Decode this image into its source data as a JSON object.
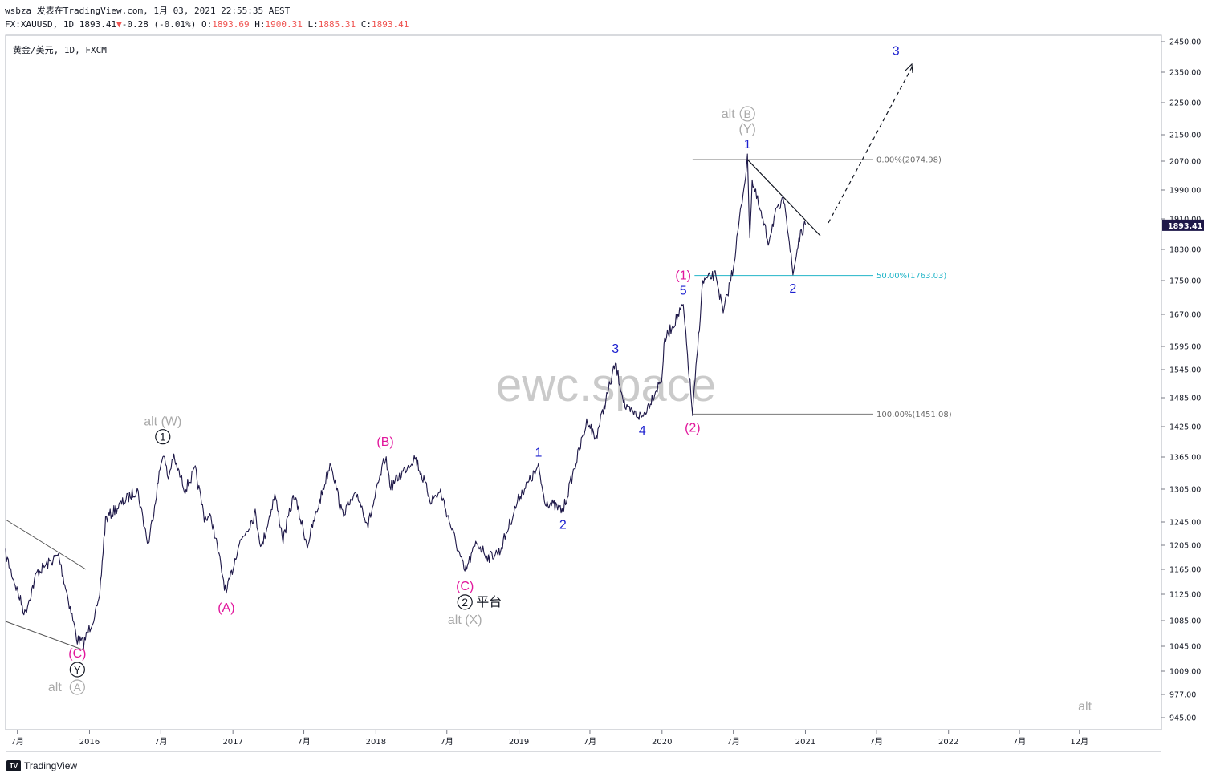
{
  "header": {
    "line1": "wsbza 发表在TradingView.com, 1月 03, 2021 22:55:35 AEST",
    "prefix": "FX:XAUUSD, 1D 1893.41",
    "arrow": "▼",
    "change": "-0.28 (-0.01%)",
    "o_label": "O:",
    "o_value": "1893.69",
    "h_label": "H:",
    "h_value": "1900.31",
    "l_label": "L:",
    "l_value": "1885.31",
    "c_label": "C:",
    "c_value": "1893.41"
  },
  "symbol_label": "黄金/美元, 1D, FXCM",
  "watermark": "ewc.space",
  "branding": "TradingView",
  "branding_icon": "tv-logo-icon",
  "colors": {
    "price": "#1e1848",
    "blue": "#1b1fcf",
    "magenta": "#e1169c",
    "grey": "#a9a9a9",
    "fib": "#4f4f4f",
    "fib_teal": "#22b5c8",
    "down": "#ef5350"
  },
  "chart_data": {
    "type": "line",
    "title": "",
    "xlabel": "",
    "ylabel": "",
    "x_ticks": [
      "7月",
      "2016",
      "7月",
      "2017",
      "7月",
      "2018",
      "7月",
      "2019",
      "7月",
      "2020",
      "7月",
      "2021",
      "7月",
      "2022",
      "7月",
      "12月"
    ],
    "y_ticks": [
      "2450.00",
      "2350.00",
      "2250.00",
      "2150.00",
      "2070.00",
      "1990.00",
      "1910.00",
      "1830.00",
      "1750.00",
      "1670.00",
      "1595.00",
      "1545.00",
      "1485.00",
      "1425.00",
      "1365.00",
      "1305.00",
      "1245.00",
      "1205.00",
      "1165.00",
      "1125.00",
      "1085.00",
      "1045.00",
      "1009.00",
      "977.00",
      "945.00"
    ],
    "ylim": [
      920,
      2480
    ],
    "last_price": "1893.41",
    "series": [
      {
        "values": [
          {
            "x": "2015-06-01",
            "y": 1190
          },
          {
            "x": "2015-07-20",
            "y": 1095
          },
          {
            "x": "2015-08-20",
            "y": 1160
          },
          {
            "x": "2015-10-14",
            "y": 1188
          },
          {
            "x": "2015-12-01",
            "y": 1055
          },
          {
            "x": "2015-12-17",
            "y": 1050
          },
          {
            "x": "2016-01-25",
            "y": 1110
          },
          {
            "x": "2016-02-11",
            "y": 1250
          },
          {
            "x": "2016-03-10",
            "y": 1270
          },
          {
            "x": "2016-05-02",
            "y": 1305
          },
          {
            "x": "2016-05-30",
            "y": 1205
          },
          {
            "x": "2016-07-06",
            "y": 1375
          },
          {
            "x": "2016-07-20",
            "y": 1325
          },
          {
            "x": "2016-08-01",
            "y": 1365
          },
          {
            "x": "2016-09-01",
            "y": 1305
          },
          {
            "x": "2016-09-27",
            "y": 1340
          },
          {
            "x": "2016-10-20",
            "y": 1255
          },
          {
            "x": "2016-11-08",
            "y": 1250
          },
          {
            "x": "2016-12-15",
            "y": 1125
          },
          {
            "x": "2017-01-15",
            "y": 1205
          },
          {
            "x": "2017-02-27",
            "y": 1260
          },
          {
            "x": "2017-03-15",
            "y": 1200
          },
          {
            "x": "2017-04-18",
            "y": 1295
          },
          {
            "x": "2017-05-09",
            "y": 1215
          },
          {
            "x": "2017-06-06",
            "y": 1295
          },
          {
            "x": "2017-07-10",
            "y": 1205
          },
          {
            "x": "2017-09-08",
            "y": 1357
          },
          {
            "x": "2017-10-06",
            "y": 1260
          },
          {
            "x": "2017-11-15",
            "y": 1295
          },
          {
            "x": "2017-12-12",
            "y": 1240
          },
          {
            "x": "2018-01-25",
            "y": 1365
          },
          {
            "x": "2018-02-08",
            "y": 1310
          },
          {
            "x": "2018-04-11",
            "y": 1365
          },
          {
            "x": "2018-05-21",
            "y": 1285
          },
          {
            "x": "2018-06-15",
            "y": 1300
          },
          {
            "x": "2018-08-16",
            "y": 1160
          },
          {
            "x": "2018-09-15",
            "y": 1210
          },
          {
            "x": "2018-10-15",
            "y": 1185
          },
          {
            "x": "2018-11-13",
            "y": 1195
          },
          {
            "x": "2019-01-04",
            "y": 1295
          },
          {
            "x": "2019-02-20",
            "y": 1345
          },
          {
            "x": "2019-03-07",
            "y": 1285
          },
          {
            "x": "2019-04-23",
            "y": 1265
          },
          {
            "x": "2019-06-25",
            "y": 1440
          },
          {
            "x": "2019-07-15",
            "y": 1400
          },
          {
            "x": "2019-09-04",
            "y": 1557
          },
          {
            "x": "2019-10-01",
            "y": 1460
          },
          {
            "x": "2019-11-12",
            "y": 1445
          },
          {
            "x": "2019-12-31",
            "y": 1525
          },
          {
            "x": "2020-01-08",
            "y": 1610
          },
          {
            "x": "2020-02-24",
            "y": 1690
          },
          {
            "x": "2020-03-19",
            "y": 1451
          },
          {
            "x": "2020-04-14",
            "y": 1748
          },
          {
            "x": "2020-05-18",
            "y": 1765
          },
          {
            "x": "2020-06-05",
            "y": 1670
          },
          {
            "x": "2020-07-01",
            "y": 1785
          },
          {
            "x": "2020-08-06",
            "y": 2075
          },
          {
            "x": "2020-08-12",
            "y": 1865
          },
          {
            "x": "2020-08-18",
            "y": 2015
          },
          {
            "x": "2020-09-28",
            "y": 1850
          },
          {
            "x": "2020-10-15",
            "y": 1920
          },
          {
            "x": "2020-11-09",
            "y": 1965
          },
          {
            "x": "2020-11-30",
            "y": 1764
          },
          {
            "x": "2020-12-15",
            "y": 1855
          },
          {
            "x": "2021-01-01",
            "y": 1895
          }
        ]
      }
    ],
    "fib_levels": [
      {
        "label": "0.00%(2074.98)",
        "y": 2074.98
      },
      {
        "label": "50.00%(1763.03)",
        "y": 1763.03
      },
      {
        "label": "100.00%(1451.08)",
        "y": 1451.08
      }
    ],
    "annotations": [
      {
        "text": "(C)",
        "x": "2015-12-01",
        "y": 1055,
        "color": "magenta",
        "pos": "below"
      },
      {
        "text": "Y",
        "x": "2015-12-01",
        "y": 1055,
        "color": "black",
        "circle": true,
        "pos": "below2"
      },
      {
        "text": "alt",
        "x": "2015-12-01",
        "y": 1055,
        "color": "grey",
        "pos": "below3a"
      },
      {
        "text": "A",
        "x": "2015-12-01",
        "y": 1055,
        "color": "grey",
        "circle": true,
        "pos": "below3"
      },
      {
        "text": "alt (W)",
        "x": "2016-07-06",
        "y": 1375,
        "color": "grey",
        "pos": "above2"
      },
      {
        "text": "1",
        "x": "2016-07-06",
        "y": 1375,
        "color": "black",
        "circle": true,
        "pos": "above"
      },
      {
        "text": "(A)",
        "x": "2016-12-15",
        "y": 1125,
        "color": "magenta",
        "pos": "below"
      },
      {
        "text": "(B)",
        "x": "2018-01-25",
        "y": 1365,
        "color": "magenta",
        "pos": "above"
      },
      {
        "text": "(C)",
        "x": "2018-08-16",
        "y": 1160,
        "color": "magenta",
        "pos": "below"
      },
      {
        "text": "2",
        "x": "2018-08-16",
        "y": 1160,
        "color": "black",
        "circle": true,
        "pos": "below2"
      },
      {
        "text": "平台",
        "x": "2018-08-16",
        "y": 1160,
        "color": "black",
        "pos": "below2r"
      },
      {
        "text": "alt (X)",
        "x": "2018-08-16",
        "y": 1160,
        "color": "grey",
        "pos": "below3"
      },
      {
        "text": "1",
        "x": "2019-02-20",
        "y": 1345,
        "color": "blue",
        "pos": "above"
      },
      {
        "text": "2",
        "x": "2019-04-23",
        "y": 1265,
        "color": "blue",
        "pos": "below"
      },
      {
        "text": "3",
        "x": "2019-09-04",
        "y": 1557,
        "color": "blue",
        "pos": "above"
      },
      {
        "text": "4",
        "x": "2019-11-12",
        "y": 1445,
        "color": "blue",
        "pos": "below"
      },
      {
        "text": "5",
        "x": "2020-02-24",
        "y": 1690,
        "color": "blue",
        "pos": "above"
      },
      {
        "text": "(1)",
        "x": "2020-02-24",
        "y": 1690,
        "color": "magenta",
        "pos": "above2"
      },
      {
        "text": "(2)",
        "x": "2020-03-19",
        "y": 1451,
        "color": "magenta",
        "pos": "below"
      },
      {
        "text": "1",
        "x": "2020-08-06",
        "y": 2075,
        "color": "blue",
        "pos": "above"
      },
      {
        "text": "(Y)",
        "x": "2020-08-06",
        "y": 2075,
        "color": "grey",
        "pos": "above2"
      },
      {
        "text": "alt",
        "x": "2020-08-06",
        "y": 2075,
        "color": "grey",
        "pos": "above3a"
      },
      {
        "text": "B",
        "x": "2020-08-06",
        "y": 2075,
        "color": "grey",
        "circle": true,
        "pos": "above3"
      },
      {
        "text": "2",
        "x": "2020-11-30",
        "y": 1764,
        "color": "blue",
        "pos": "below"
      },
      {
        "text": "3",
        "x": "2021-08-20",
        "y": 2370,
        "color": "blue",
        "pos": "above"
      },
      {
        "text": "alt",
        "x": "2022-12-15",
        "y": 955,
        "color": "grey",
        "pos": "plain"
      }
    ],
    "grid": false,
    "legend": "none"
  }
}
